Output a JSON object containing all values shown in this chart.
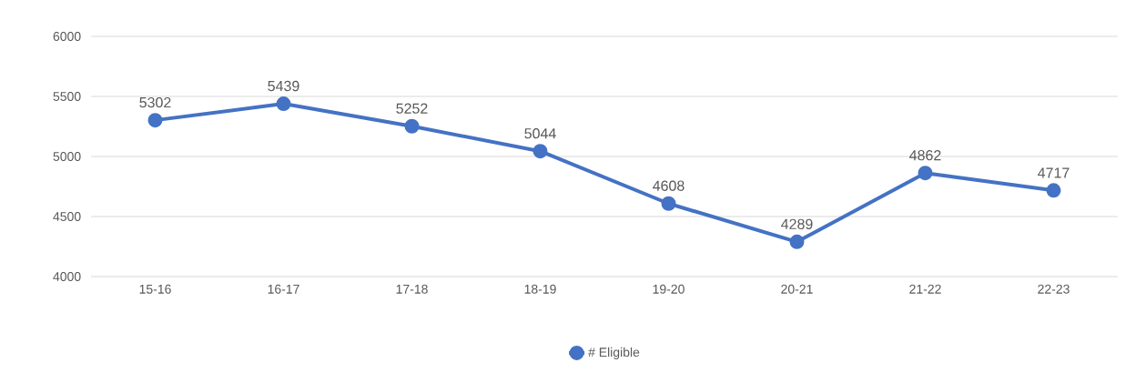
{
  "chart_data": {
    "type": "line",
    "categories": [
      "15-16",
      "16-17",
      "17-18",
      "18-19",
      "19-20",
      "20-21",
      "21-22",
      "22-23"
    ],
    "series": [
      {
        "name": "# Eligible",
        "color": "#4472c4",
        "values": [
          5302,
          5439,
          5252,
          5044,
          4608,
          4289,
          4862,
          4717
        ]
      }
    ],
    "ylim": [
      4000,
      6000
    ],
    "yticks": [
      4000,
      4500,
      5000,
      5500,
      6000
    ],
    "grid": "y",
    "legend": "bottom",
    "marker": "circle",
    "line_style": "solid",
    "data_labels": true
  }
}
